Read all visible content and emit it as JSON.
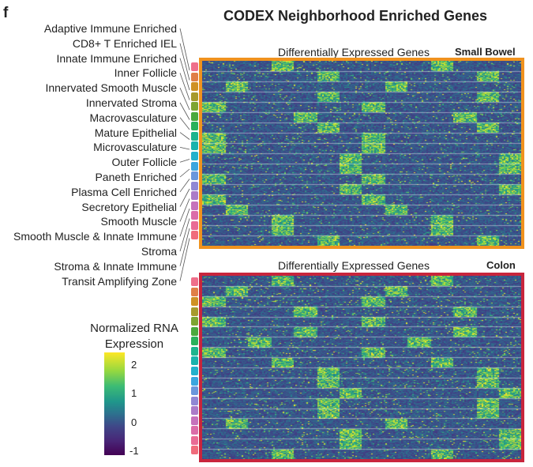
{
  "panel_letter": "f",
  "chart_data": {
    "type": "heatmap",
    "title": "CODEX Neighborhood Enriched Genes",
    "heatmaps": [
      {
        "id": "small-bowel",
        "title": "Differentially Expressed Genes",
        "tissue": "Small Bowel",
        "frame_color": "#f0921e",
        "row_groups": [
          "Adaptive Immune Enriched",
          "CD8+ T Enriched IEL",
          "Innate Immune Enriched",
          "Inner Follicle",
          "Innervated Smooth Muscle",
          "Innervated Stroma",
          "Macrovasculature",
          "Mature Epithelial",
          "Microvasculature",
          "Outer Follicle",
          "Paneth Enriched",
          "Plasma Cell Enriched",
          "Secretory Epithelial",
          "Smooth Muscle",
          "Smooth Muscle & Innate Immune",
          "Stroma",
          "Stroma & Innate Immune",
          "Transit Amplifying Zone"
        ]
      },
      {
        "id": "colon",
        "title": "Differentially Expressed Genes",
        "tissue": "Colon",
        "frame_color": "#c8253c",
        "row_groups": [
          "Adaptive Immune Enriched",
          "CD8+ T Enriched IEL",
          "Innate Immune Enriched",
          "Inner Follicle",
          "Innervated Smooth Muscle",
          "Innervated Stroma",
          "Macrovasculature",
          "Mature Epithelial",
          "Microvasculature",
          "Outer Follicle",
          "Paneth Enriched",
          "Plasma Cell Enriched",
          "Secretory Epithelial",
          "Smooth Muscle",
          "Smooth Muscle & Innate Immune",
          "Stroma",
          "Stroma & Innate Immune",
          "Transit Amplifying Zone"
        ]
      }
    ],
    "cluster_labels": [
      "Adaptive Immune Enriched",
      "CD8+ T Enriched IEL",
      "Innate Immune Enriched",
      "Inner Follicle",
      "Innervated Smooth Muscle",
      "Innervated Stroma",
      "Macrovasculature",
      "Mature Epithelial",
      "Microvasculature",
      "Outer Follicle",
      "Paneth Enriched",
      "Plasma Cell Enriched",
      "Secretory Epithelial",
      "Smooth Muscle",
      "Smooth Muscle & Innate Immune",
      "Stroma",
      "Stroma & Innate Immune",
      "Transit Amplifying Zone"
    ],
    "cluster_colors": [
      "#ef6f8a",
      "#e07f47",
      "#cf9125",
      "#a79a2d",
      "#7ea532",
      "#4aa93d",
      "#2ab15b",
      "#1db48e",
      "#1ab3ad",
      "#23b1cc",
      "#3aa6df",
      "#6a97dc",
      "#9087d4",
      "#ab7bc8",
      "#c672bb",
      "#db6ca8",
      "#e96b95",
      "#f06c7c"
    ],
    "colorbar": {
      "title_line1": "Normalized RNA",
      "title_line2": "Expression",
      "range": [
        -1,
        2.5
      ],
      "ticks": [
        "2",
        "1",
        "0",
        "-1"
      ],
      "colormap": "viridis"
    }
  }
}
